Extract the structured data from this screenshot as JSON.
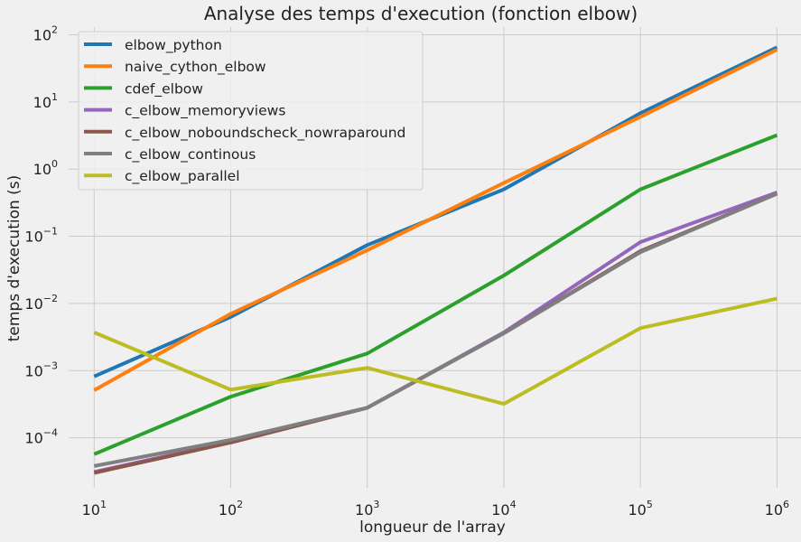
{
  "chart_data": {
    "type": "line",
    "title": "Analyse des temps d'execution (fonction elbow)",
    "xlabel": "longueur de l'array",
    "ylabel": "temps d'execution (s)",
    "xscale": "log",
    "yscale": "log",
    "xlim": [
      6.5,
      1500000
    ],
    "ylim": [
      1.8e-05,
      130
    ],
    "grid": true,
    "legend_position": "top-left",
    "x": [
      10,
      100,
      1000,
      10000,
      100000,
      1000000
    ],
    "x_ticks": [
      {
        "value": 10,
        "base": "10",
        "exp": "1"
      },
      {
        "value": 100,
        "base": "10",
        "exp": "2"
      },
      {
        "value": 1000,
        "base": "10",
        "exp": "3"
      },
      {
        "value": 10000,
        "base": "10",
        "exp": "4"
      },
      {
        "value": 100000,
        "base": "10",
        "exp": "5"
      },
      {
        "value": 1000000,
        "base": "10",
        "exp": "6"
      }
    ],
    "y_ticks": [
      {
        "value": 0.0001,
        "base": "10",
        "exp": "−4"
      },
      {
        "value": 0.001,
        "base": "10",
        "exp": "−3"
      },
      {
        "value": 0.01,
        "base": "10",
        "exp": "−2"
      },
      {
        "value": 0.1,
        "base": "10",
        "exp": "−1"
      },
      {
        "value": 1,
        "base": "10",
        "exp": "0"
      },
      {
        "value": 10,
        "base": "10",
        "exp": "1"
      },
      {
        "value": 100,
        "base": "10",
        "exp": "2"
      }
    ],
    "series": [
      {
        "name": "elbow_python",
        "color": "#1f77b4",
        "values": [
          0.00082,
          0.0063,
          0.074,
          0.5,
          6.8,
          65
        ]
      },
      {
        "name": "naive_cython_elbow",
        "color": "#ff7f0e",
        "values": [
          0.00051,
          0.007,
          0.062,
          0.62,
          6.0,
          60
        ]
      },
      {
        "name": "cdef_elbow",
        "color": "#2ca02c",
        "values": [
          5.7e-05,
          0.00041,
          0.0018,
          0.026,
          0.5,
          3.2
        ]
      },
      {
        "name": "c_elbow_memoryviews",
        "color": "#9467bd",
        "values": [
          3.1e-05,
          8.7e-05,
          0.00028,
          0.0037,
          0.082,
          0.45
        ]
      },
      {
        "name": "c_elbow_noboundscheck_nowraparound",
        "color": "#8c564b",
        "values": [
          3e-05,
          8.5e-05,
          0.00028,
          0.0036,
          0.06,
          0.43
        ]
      },
      {
        "name": "c_elbow_continous",
        "color": "#7f7f7f",
        "values": [
          3.8e-05,
          9.3e-05,
          0.00028,
          0.0036,
          0.058,
          0.43
        ]
      },
      {
        "name": "c_elbow_parallel",
        "color": "#bcbd22",
        "values": [
          0.0037,
          0.00052,
          0.0011,
          0.00032,
          0.0043,
          0.0118
        ]
      }
    ]
  }
}
